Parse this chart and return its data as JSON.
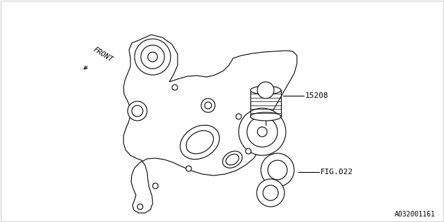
{
  "background_color": "#ffffff",
  "line_color": "#000000",
  "text_color": "#000000",
  "label_15208": "15208",
  "label_fig022": "FIG.022",
  "label_front": "FRONT",
  "part_number": "A032001161",
  "fig_width": 6.4,
  "fig_height": 3.2,
  "dpi": 100
}
